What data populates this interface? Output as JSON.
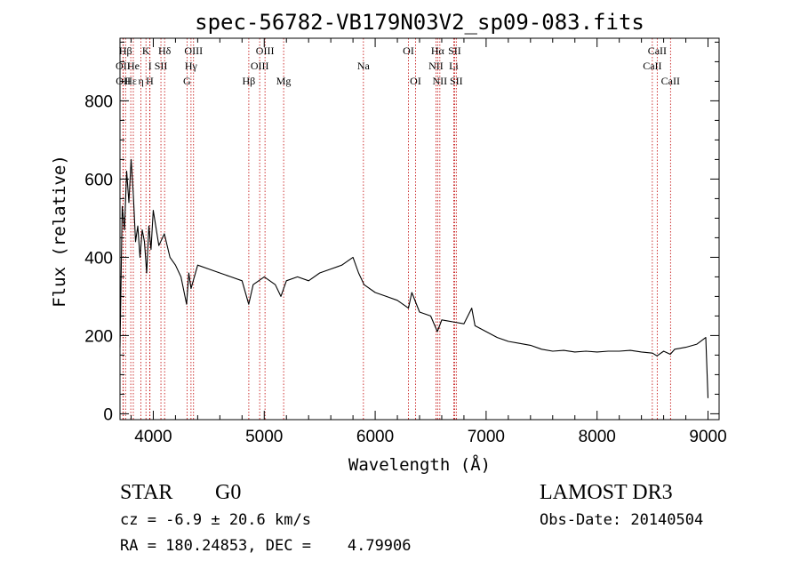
{
  "chart_data": {
    "type": "line",
    "title": "spec-56782-VB179N03V2_sp09-083.fits",
    "xlabel": "Wavelength (Å)",
    "ylabel": "Flux (relative)",
    "xlim": [
      3700,
      9100
    ],
    "ylim": [
      -15,
      960
    ],
    "xticks": [
      4000,
      5000,
      6000,
      7000,
      8000,
      9000
    ],
    "xtick_labels": [
      "4000",
      "5000",
      "6000",
      "7000",
      "8000",
      "9000"
    ],
    "yticks": [
      0,
      200,
      400,
      600,
      800
    ],
    "ytick_labels": [
      "0",
      "200",
      "400",
      "600",
      "800"
    ],
    "series": [
      {
        "name": "flux",
        "x": [
          3700,
          3720,
          3740,
          3760,
          3780,
          3800,
          3820,
          3840,
          3860,
          3880,
          3900,
          3920,
          3940,
          3960,
          3980,
          4000,
          4050,
          4100,
          4150,
          4200,
          4250,
          4300,
          4320,
          4340,
          4400,
          4500,
          4600,
          4700,
          4800,
          4860,
          4900,
          5000,
          5100,
          5150,
          5200,
          5300,
          5400,
          5500,
          5600,
          5700,
          5800,
          5850,
          5900,
          6000,
          6100,
          6200,
          6300,
          6330,
          6400,
          6500,
          6560,
          6600,
          6700,
          6800,
          6870,
          6900,
          7000,
          7100,
          7200,
          7300,
          7400,
          7500,
          7600,
          7700,
          7800,
          7900,
          8000,
          8100,
          8200,
          8300,
          8400,
          8500,
          8540,
          8600,
          8660,
          8700,
          8800,
          8900,
          8980,
          9000
        ],
        "y": [
          170,
          530,
          470,
          620,
          540,
          650,
          560,
          440,
          480,
          400,
          470,
          440,
          360,
          480,
          420,
          520,
          430,
          460,
          400,
          380,
          350,
          280,
          360,
          320,
          380,
          370,
          360,
          350,
          340,
          280,
          330,
          350,
          330,
          300,
          340,
          350,
          340,
          360,
          370,
          380,
          400,
          360,
          330,
          310,
          300,
          290,
          270,
          310,
          260,
          250,
          210,
          240,
          235,
          230,
          270,
          225,
          210,
          195,
          185,
          180,
          175,
          165,
          160,
          162,
          158,
          160,
          158,
          160,
          160,
          162,
          158,
          155,
          148,
          160,
          152,
          165,
          170,
          178,
          195,
          40
        ]
      }
    ],
    "lines": [
      {
        "label": "Hβ",
        "x": 3750,
        "row": 0
      },
      {
        "label": "OII",
        "x": 3727,
        "row": 1
      },
      {
        "label": "OII",
        "x": 3729,
        "row": 2
      },
      {
        "label": "Hε",
        "x": 3797,
        "row": 2
      },
      {
        "label": "He",
        "x": 3820,
        "row": 1
      },
      {
        "label": "K",
        "x": 3934,
        "row": 0
      },
      {
        "label": "η",
        "x": 3889,
        "row": 2
      },
      {
        "label": "I",
        "x": 3970,
        "row": 1
      },
      {
        "label": "H",
        "x": 3968,
        "row": 2
      },
      {
        "label": "SII",
        "x": 4069,
        "row": 1
      },
      {
        "label": "Hδ",
        "x": 4102,
        "row": 0
      },
      {
        "label": "OIII",
        "x": 4363,
        "row": 0
      },
      {
        "label": "Hγ",
        "x": 4340,
        "row": 1
      },
      {
        "label": "G",
        "x": 4304,
        "row": 2
      },
      {
        "label": "Hβ",
        "x": 4861,
        "row": 2
      },
      {
        "label": "OIII",
        "x": 4959,
        "row": 1
      },
      {
        "label": "OIII",
        "x": 5007,
        "row": 0
      },
      {
        "label": "Mg",
        "x": 5175,
        "row": 2
      },
      {
        "label": "Na",
        "x": 5894,
        "row": 1
      },
      {
        "label": "OI",
        "x": 6300,
        "row": 0
      },
      {
        "label": "OI",
        "x": 6364,
        "row": 2
      },
      {
        "label": "Hα",
        "x": 6563,
        "row": 0
      },
      {
        "label": "NII",
        "x": 6548,
        "row": 1
      },
      {
        "label": "NII",
        "x": 6583,
        "row": 2
      },
      {
        "label": "SII",
        "x": 6716,
        "row": 0
      },
      {
        "label": "Li",
        "x": 6708,
        "row": 1
      },
      {
        "label": "SII",
        "x": 6731,
        "row": 2
      },
      {
        "label": "CaII",
        "x": 8542,
        "row": 0
      },
      {
        "label": "CaII",
        "x": 8498,
        "row": 1
      },
      {
        "label": "CaII",
        "x": 8662,
        "row": 2
      }
    ]
  },
  "info": {
    "object_class": "STAR",
    "subclass": "G0",
    "survey": "LAMOST DR3",
    "redshift": "cz = -6.9 ± 20.6 km/s",
    "obs_date": "Obs-Date: 20140504",
    "coordinates": "RA = 180.24853, DEC =    4.79906"
  }
}
